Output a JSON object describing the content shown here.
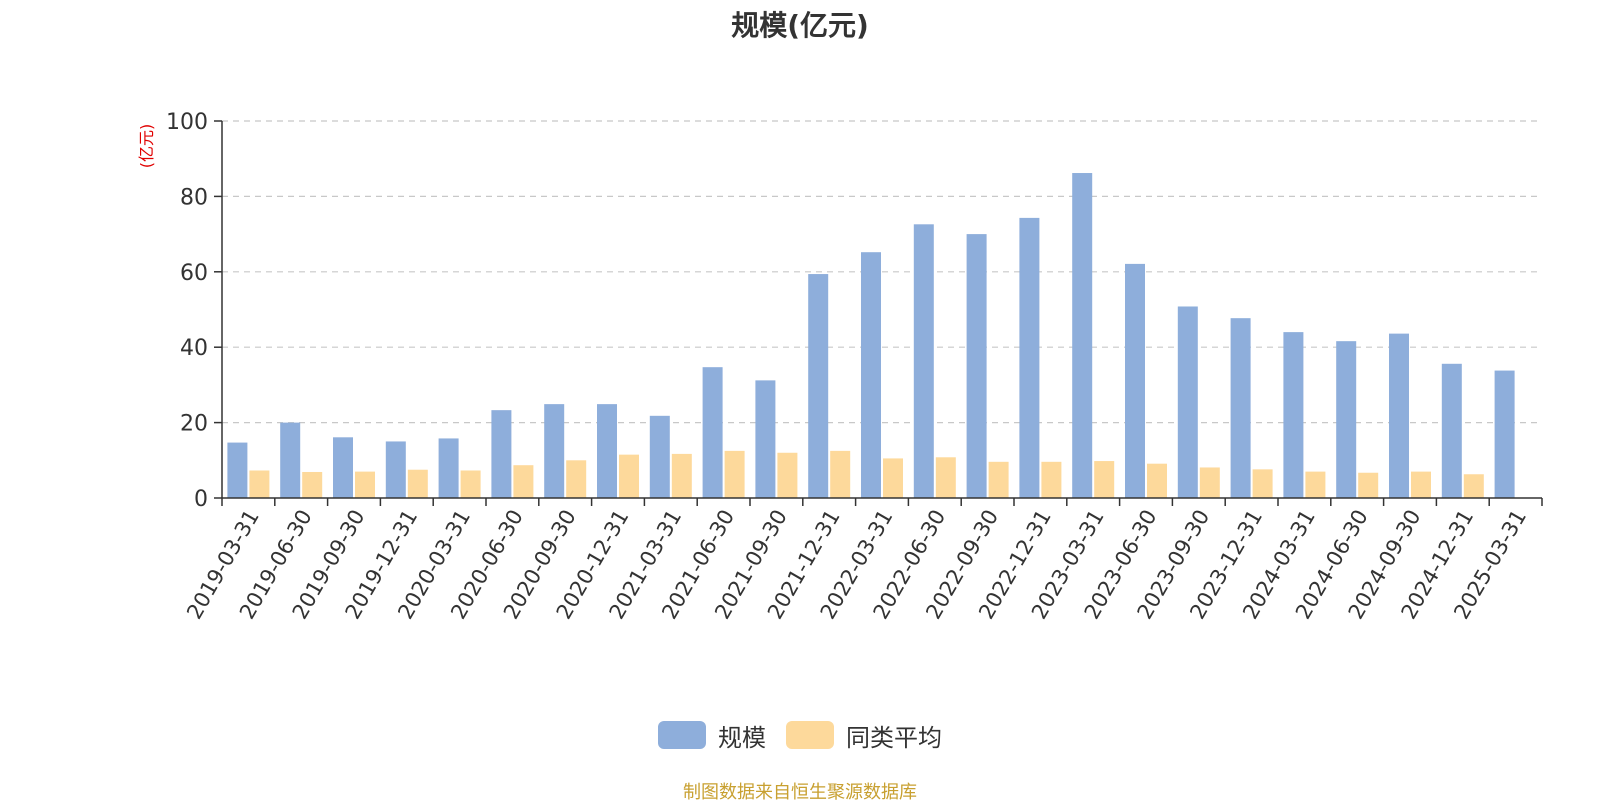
{
  "chart_data": {
    "type": "bar",
    "title": "规模(亿元)",
    "ylabel": "(亿元)",
    "xlabel": "",
    "ylim": [
      0,
      100
    ],
    "yticks": [
      0,
      20,
      40,
      60,
      80,
      100
    ],
    "grid": true,
    "legend_position": "bottom",
    "categories": [
      "2019-03-31",
      "2019-06-30",
      "2019-09-30",
      "2019-12-31",
      "2020-03-31",
      "2020-06-30",
      "2020-09-30",
      "2020-12-31",
      "2021-03-31",
      "2021-06-30",
      "2021-09-30",
      "2021-12-31",
      "2022-03-31",
      "2022-06-30",
      "2022-09-30",
      "2022-12-31",
      "2023-03-31",
      "2023-06-30",
      "2023-09-30",
      "2023-12-31",
      "2024-03-31",
      "2024-06-30",
      "2024-09-30",
      "2024-12-31",
      "2025-03-31"
    ],
    "series": [
      {
        "name": "规模",
        "color": "#8eaedb",
        "values": [
          14.7,
          20.0,
          16.1,
          15.0,
          15.8,
          23.3,
          24.9,
          24.9,
          21.8,
          34.7,
          31.2,
          59.4,
          65.2,
          72.6,
          70.0,
          74.3,
          86.2,
          62.1,
          50.8,
          47.7,
          44.0,
          41.6,
          43.6,
          35.6,
          33.8
        ]
      },
      {
        "name": "同类平均",
        "color": "#fdd99b",
        "values": [
          7.3,
          6.9,
          7.0,
          7.5,
          7.3,
          8.7,
          10.0,
          11.5,
          11.7,
          12.5,
          12.0,
          12.5,
          10.5,
          10.8,
          9.6,
          9.6,
          9.8,
          9.1,
          8.1,
          7.6,
          7.0,
          6.7,
          7.0,
          6.3,
          null
        ]
      }
    ]
  },
  "source_note": "制图数据来自恒生聚源数据库"
}
